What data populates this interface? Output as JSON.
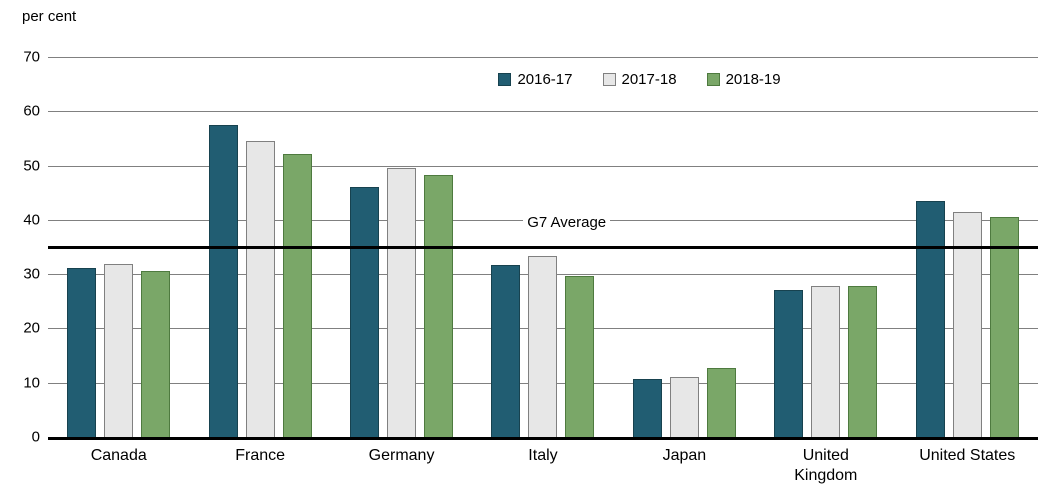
{
  "chart_data": {
    "type": "bar",
    "title": "",
    "ylabel": "per cent",
    "xlabel": "",
    "ylim": [
      0,
      70
    ],
    "ytick_step": 10,
    "yticks": [
      0,
      10,
      20,
      30,
      40,
      50,
      60,
      70
    ],
    "grid": true,
    "legend_position": "top-center",
    "categories": [
      "Canada",
      "France",
      "Germany",
      "Italy",
      "Japan",
      "United Kingdom",
      "United States"
    ],
    "series": [
      {
        "name": "2016-17",
        "color": "#215d72",
        "border": "#17424f",
        "values": [
          31.1,
          57.5,
          46.1,
          31.7,
          10.7,
          27.1,
          43.5
        ]
      },
      {
        "name": "2017-18",
        "color": "#e7e7e7",
        "border": "#808080",
        "values": [
          31.8,
          54.5,
          49.5,
          33.3,
          11.0,
          27.9,
          41.5
        ]
      },
      {
        "name": "2018-19",
        "color": "#7aa768",
        "border": "#4e7a3f",
        "values": [
          30.6,
          52.2,
          48.3,
          29.7,
          12.7,
          27.8,
          40.6
        ]
      }
    ],
    "reference_line": {
      "label": "G7 Average",
      "value": 35
    }
  }
}
